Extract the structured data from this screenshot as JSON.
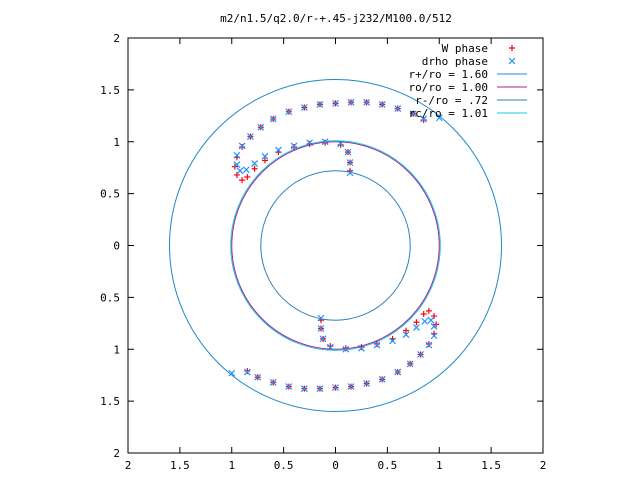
{
  "chart_data": {
    "type": "scatter",
    "title": "m2/n1.5/q2.0/r-+.45-j232/M100.0/512",
    "xlabel": "",
    "ylabel": "",
    "xlim": [
      -2,
      2
    ],
    "ylim": [
      -2,
      2
    ],
    "x_ticks": [
      {
        "value": -2,
        "label": "2"
      },
      {
        "value": -1.5,
        "label": "1.5"
      },
      {
        "value": -1,
        "label": "1"
      },
      {
        "value": -0.5,
        "label": "0.5"
      },
      {
        "value": 0,
        "label": "0"
      },
      {
        "value": 0.5,
        "label": "0.5"
      },
      {
        "value": 1,
        "label": "1"
      },
      {
        "value": 1.5,
        "label": "1.5"
      },
      {
        "value": 2,
        "label": "2"
      }
    ],
    "y_ticks": [
      {
        "value": 2,
        "label": "2"
      },
      {
        "value": 1.5,
        "label": "1.5"
      },
      {
        "value": 1,
        "label": "1"
      },
      {
        "value": 0.5,
        "label": "0.5"
      },
      {
        "value": 0,
        "label": "0"
      },
      {
        "value": -0.5,
        "label": "0.5"
      },
      {
        "value": -1,
        "label": "1"
      },
      {
        "value": -1.5,
        "label": "1.5"
      },
      {
        "value": -2,
        "label": "2"
      }
    ],
    "grid": false,
    "legend_position": "top-right",
    "series": [
      {
        "name": "W phase",
        "kind": "points",
        "marker": "+",
        "color": "#ff0000",
        "arms": [
          [
            [
              0.85,
              1.21
            ],
            [
              0.75,
              1.27
            ],
            [
              0.6,
              1.32
            ],
            [
              0.45,
              1.36
            ],
            [
              0.3,
              1.38
            ],
            [
              0.15,
              1.38
            ],
            [
              0.0,
              1.37
            ],
            [
              -0.15,
              1.36
            ],
            [
              -0.3,
              1.33
            ],
            [
              -0.45,
              1.29
            ],
            [
              -0.6,
              1.22
            ],
            [
              -0.72,
              1.14
            ],
            [
              -0.82,
              1.05
            ],
            [
              -0.9,
              0.95
            ],
            [
              -0.95,
              0.85
            ],
            [
              -0.97,
              0.76
            ],
            [
              -0.95,
              0.68
            ],
            [
              -0.9,
              0.63
            ],
            [
              -0.85,
              0.66
            ],
            [
              -0.78,
              0.74
            ],
            [
              -0.68,
              0.82
            ],
            [
              -0.55,
              0.9
            ],
            [
              -0.4,
              0.95
            ],
            [
              -0.25,
              0.98
            ],
            [
              -0.1,
              0.99
            ],
            [
              0.05,
              0.97
            ],
            [
              0.12,
              0.9
            ],
            [
              0.14,
              0.8
            ],
            [
              0.14,
              0.72
            ]
          ],
          [
            [
              -0.85,
              -1.21
            ],
            [
              -0.75,
              -1.27
            ],
            [
              -0.6,
              -1.32
            ],
            [
              -0.45,
              -1.36
            ],
            [
              -0.3,
              -1.38
            ],
            [
              -0.15,
              -1.38
            ],
            [
              0.0,
              -1.37
            ],
            [
              0.15,
              -1.36
            ],
            [
              0.3,
              -1.33
            ],
            [
              0.45,
              -1.29
            ],
            [
              0.6,
              -1.22
            ],
            [
              0.72,
              -1.14
            ],
            [
              0.82,
              -1.05
            ],
            [
              0.9,
              -0.95
            ],
            [
              0.95,
              -0.85
            ],
            [
              0.97,
              -0.76
            ],
            [
              0.95,
              -0.68
            ],
            [
              0.9,
              -0.63
            ],
            [
              0.85,
              -0.66
            ],
            [
              0.78,
              -0.74
            ],
            [
              0.68,
              -0.82
            ],
            [
              0.55,
              -0.9
            ],
            [
              0.4,
              -0.95
            ],
            [
              0.25,
              -0.98
            ],
            [
              0.1,
              -0.99
            ],
            [
              -0.05,
              -0.97
            ],
            [
              -0.12,
              -0.9
            ],
            [
              -0.14,
              -0.8
            ],
            [
              -0.14,
              -0.72
            ]
          ]
        ]
      },
      {
        "name": "drho phase",
        "kind": "points",
        "marker": "x",
        "color": "#1e90ff",
        "arms": [
          [
            [
              1.0,
              1.23
            ],
            [
              0.85,
              1.22
            ],
            [
              0.75,
              1.27
            ],
            [
              0.6,
              1.32
            ],
            [
              0.45,
              1.36
            ],
            [
              0.3,
              1.38
            ],
            [
              0.15,
              1.38
            ],
            [
              0.0,
              1.37
            ],
            [
              -0.15,
              1.36
            ],
            [
              -0.3,
              1.33
            ],
            [
              -0.45,
              1.29
            ],
            [
              -0.6,
              1.22
            ],
            [
              -0.72,
              1.14
            ],
            [
              -0.82,
              1.05
            ],
            [
              -0.9,
              0.96
            ],
            [
              -0.95,
              0.87
            ],
            [
              -0.95,
              0.78
            ],
            [
              -0.92,
              0.72
            ],
            [
              -0.86,
              0.73
            ],
            [
              -0.78,
              0.79
            ],
            [
              -0.68,
              0.86
            ],
            [
              -0.55,
              0.92
            ],
            [
              -0.4,
              0.96
            ],
            [
              -0.25,
              0.99
            ],
            [
              -0.1,
              1.0
            ],
            [
              0.05,
              0.98
            ],
            [
              0.12,
              0.9
            ],
            [
              0.14,
              0.8
            ],
            [
              0.14,
              0.7
            ]
          ],
          [
            [
              -1.0,
              -1.23
            ],
            [
              -0.85,
              -1.22
            ],
            [
              -0.75,
              -1.27
            ],
            [
              -0.6,
              -1.32
            ],
            [
              -0.45,
              -1.36
            ],
            [
              -0.3,
              -1.38
            ],
            [
              -0.15,
              -1.38
            ],
            [
              0.0,
              -1.37
            ],
            [
              0.15,
              -1.36
            ],
            [
              0.3,
              -1.33
            ],
            [
              0.45,
              -1.29
            ],
            [
              0.6,
              -1.22
            ],
            [
              0.72,
              -1.14
            ],
            [
              0.82,
              -1.05
            ],
            [
              0.9,
              -0.96
            ],
            [
              0.95,
              -0.87
            ],
            [
              0.95,
              -0.78
            ],
            [
              0.92,
              -0.72
            ],
            [
              0.86,
              -0.73
            ],
            [
              0.78,
              -0.79
            ],
            [
              0.68,
              -0.86
            ],
            [
              0.55,
              -0.92
            ],
            [
              0.4,
              -0.96
            ],
            [
              0.25,
              -0.99
            ],
            [
              0.1,
              -1.0
            ],
            [
              -0.05,
              -0.98
            ],
            [
              -0.12,
              -0.9
            ],
            [
              -0.14,
              -0.8
            ],
            [
              -0.14,
              -0.7
            ]
          ]
        ]
      },
      {
        "name": "r+/ro = 1.60",
        "kind": "circle",
        "r": 1.6,
        "color": "#1e88c8"
      },
      {
        "name": "ro/ro = 1.00",
        "kind": "circle",
        "r": 1.0,
        "color": "#a020a0"
      },
      {
        "name": "r-/ro = .72",
        "kind": "circle",
        "r": 0.72,
        "color": "#2a7fc0"
      },
      {
        "name": "rc/ro = 1.01",
        "kind": "circle",
        "r": 1.01,
        "color": "#20c8d8"
      }
    ]
  }
}
